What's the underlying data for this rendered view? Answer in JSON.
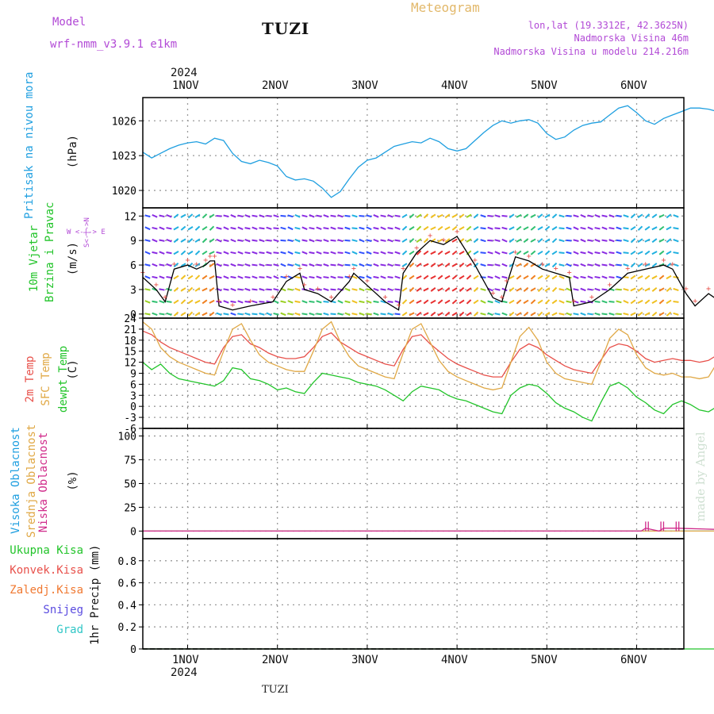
{
  "header": {
    "model_title": "Model",
    "model_name": "wrf-nmm_v3.9.1  e1km",
    "station": "TUZI",
    "meteogram": "Meteogram",
    "coords": "lon,lat (19.3312E, 42.3625N)",
    "elevation": "Nadmorska Visina 46m",
    "model_elevation": "Nadmorska Visina u modelu 214.216m"
  },
  "timeline": {
    "year": "2024",
    "days": [
      "1NOV",
      "2NOV",
      "3NOV",
      "4NOV",
      "5NOV",
      "6NOV"
    ]
  },
  "panels": {
    "pressure": {
      "label": "Pritisak na nivou mora",
      "unit": "(hPa)"
    },
    "wind": {
      "label_1": "10m Vjetar",
      "label_2": "Brzina i Pravac",
      "unit": "(m/s)",
      "compass": "W <-|-> E",
      "compass_ns": "S<-|->N"
    },
    "temp": {
      "label_2m": "2m Temp",
      "label_sfc": "SFC Temp",
      "label_dew": "dewpt Temp",
      "unit": "(C)"
    },
    "cloud": {
      "label_high": "Visoka Oblacnost",
      "label_mid": "Srednja Oblacnost",
      "label_low": "Niska Oblacnost",
      "unit": "(%)"
    },
    "precip": {
      "unit": "1hr Precip (mm)",
      "legend": [
        "Ukupna Kisa",
        "Konvek.Kisa",
        "Zaledj.Kisa",
        "Snijeg",
        "Grad"
      ]
    }
  },
  "footer": {
    "station": "TUZI",
    "made_by": "made by Angel"
  },
  "colors": {
    "pressure": "#1f9fe0",
    "temp2m": "#e8504a",
    "sfc": "#e0a845",
    "dew": "#22c42a",
    "ukupna": "#22c42a",
    "konvek": "#e8504a",
    "zaledj": "#f07830",
    "snijeg": "#5a4be0",
    "grad": "#30c6c6",
    "header": "#b24ad6",
    "meteogram": "#e2b86a"
  },
  "chart_data": [
    {
      "type": "line",
      "title": "Pritisak na nivou mora",
      "ylabel": "(hPa)",
      "ylim": [
        1018.5,
        1028
      ],
      "yticks": [
        1020,
        1023,
        1026
      ],
      "x_unit": "days since 1 NOV 2024 00:00",
      "series": [
        {
          "x": [
            -0.5,
            -0.4,
            -0.3,
            -0.2,
            -0.1,
            0.0,
            0.1,
            0.2,
            0.3,
            0.4,
            0.5,
            0.6,
            0.7,
            0.8,
            0.9,
            1.0,
            1.1,
            1.2,
            1.3,
            1.4,
            1.5,
            1.6,
            1.7,
            1.8,
            1.9,
            2.0,
            2.1,
            2.2,
            2.3,
            2.4,
            2.5,
            2.6,
            2.7,
            2.8,
            2.9,
            3.0,
            3.1,
            3.2,
            3.3,
            3.4,
            3.5,
            3.6,
            3.7,
            3.8,
            3.9,
            4.0,
            4.1,
            4.2,
            4.3,
            4.4,
            4.5,
            4.6,
            4.7,
            4.8,
            4.9,
            5.0,
            5.1,
            5.2,
            5.3,
            5.4,
            5.5,
            5.6,
            5.7,
            5.8,
            5.9,
            6.0,
            6.1,
            6.2,
            6.3,
            6.4,
            6.5
          ],
          "values": [
            1023.3,
            1022.8,
            1023.2,
            1023.6,
            1023.9,
            1024.1,
            1024.2,
            1024.0,
            1024.5,
            1024.3,
            1023.2,
            1022.5,
            1022.3,
            1022.6,
            1022.4,
            1022.1,
            1021.2,
            1020.9,
            1021.0,
            1020.8,
            1020.2,
            1019.4,
            1019.9,
            1021.0,
            1022.0,
            1022.6,
            1022.8,
            1023.3,
            1023.8,
            1024.0,
            1024.2,
            1024.1,
            1024.5,
            1024.2,
            1023.6,
            1023.4,
            1023.6,
            1024.3,
            1025.0,
            1025.6,
            1026.0,
            1025.8,
            1026.0,
            1026.1,
            1025.8,
            1024.9,
            1024.4,
            1024.6,
            1025.2,
            1025.6,
            1025.8,
            1025.9,
            1026.5,
            1027.1,
            1027.3,
            1026.7,
            1026.0,
            1025.7,
            1026.2,
            1026.5,
            1026.8,
            1027.1,
            1027.1,
            1027.0,
            1026.8,
            1027.0,
            1027.3,
            1027.6,
            1027.8,
            1027.4,
            1026.7
          ]
        }
      ]
    },
    {
      "type": "line",
      "title": "10m Vjetar Brzina i Pravac",
      "ylabel": "(m/s)",
      "ylim": [
        -0.5,
        13
      ],
      "yticks": [
        0,
        3,
        6,
        9,
        12
      ],
      "x_unit": "days since 1 NOV 2024 00:00",
      "series": [
        {
          "name": "wind speed",
          "x": [
            -0.5,
            -0.35,
            -0.25,
            -0.15,
            0.0,
            0.1,
            0.2,
            0.25,
            0.3,
            0.35,
            0.5,
            0.7,
            0.95,
            1.1,
            1.25,
            1.3,
            1.45,
            1.6,
            1.8,
            1.85,
            2.0,
            2.2,
            2.35,
            2.4,
            2.55,
            2.7,
            2.85,
            3.0,
            3.2,
            3.4,
            3.5,
            3.55,
            3.65,
            3.8,
            3.95,
            4.1,
            4.25,
            4.3,
            4.5,
            4.7,
            4.9,
            5.1,
            5.3,
            5.4,
            5.55,
            5.65,
            5.8,
            6.0,
            6.2,
            6.35,
            6.5
          ],
          "values": [
            4.5,
            3.0,
            1.5,
            5.5,
            6.0,
            5.5,
            6.0,
            6.5,
            6.5,
            1.0,
            0.5,
            1.0,
            1.5,
            4.0,
            5.0,
            3.0,
            2.5,
            1.5,
            4.0,
            5.0,
            3.5,
            1.5,
            0.5,
            5.0,
            7.5,
            9.0,
            8.5,
            9.5,
            6.0,
            2.0,
            1.5,
            3.5,
            7.0,
            6.5,
            5.5,
            5.0,
            4.5,
            1.0,
            1.5,
            3.0,
            5.0,
            5.5,
            6.0,
            5.5,
            2.5,
            1.0,
            2.5,
            1.0,
            0.5,
            1.0,
            1.5
          ]
        }
      ]
    },
    {
      "type": "line",
      "title": "2m Temp / SFC Temp / dewpt Temp",
      "ylabel": "(C)",
      "ylim": [
        -6,
        24
      ],
      "yticks": [
        -6,
        -3,
        0,
        3,
        6,
        9,
        12,
        15,
        18,
        21,
        24
      ],
      "x_unit": "days since 1 NOV 2024 00:00",
      "series": [
        {
          "name": "2m Temp",
          "x": [
            -0.5,
            -0.4,
            -0.3,
            -0.2,
            -0.1,
            0.0,
            0.1,
            0.2,
            0.3,
            0.4,
            0.5,
            0.6,
            0.7,
            0.8,
            0.9,
            1.0,
            1.1,
            1.2,
            1.3,
            1.4,
            1.5,
            1.6,
            1.7,
            1.8,
            1.9,
            2.0,
            2.1,
            2.2,
            2.3,
            2.4,
            2.5,
            2.6,
            2.7,
            2.8,
            2.9,
            3.0,
            3.1,
            3.2,
            3.3,
            3.4,
            3.5,
            3.6,
            3.7,
            3.8,
            3.9,
            4.0,
            4.1,
            4.2,
            4.3,
            4.4,
            4.5,
            4.6,
            4.7,
            4.8,
            4.9,
            5.0,
            5.1,
            5.2,
            5.3,
            5.4,
            5.5,
            5.6,
            5.7,
            5.8,
            5.9,
            6.0,
            6.1,
            6.2,
            6.3,
            6.4,
            6.5
          ],
          "values": [
            20.5,
            19.5,
            17.5,
            16.0,
            15.0,
            14.0,
            13.0,
            12.0,
            11.5,
            16.0,
            19.0,
            19.5,
            17.0,
            16.0,
            14.5,
            13.5,
            13.0,
            13.0,
            13.5,
            16.0,
            19.0,
            20.0,
            17.5,
            16.0,
            14.5,
            13.5,
            12.5,
            11.5,
            11.0,
            15.5,
            19.0,
            19.5,
            17.0,
            15.0,
            13.0,
            11.5,
            10.5,
            9.5,
            8.5,
            8.0,
            8.0,
            12.0,
            15.5,
            17.0,
            16.0,
            14.0,
            12.5,
            11.0,
            10.0,
            9.5,
            9.0,
            12.5,
            16.0,
            17.0,
            16.5,
            15.0,
            13.0,
            12.0,
            12.5,
            13.0,
            12.5,
            12.5,
            12.0,
            12.5,
            14.0,
            16.0,
            17.5,
            17.0,
            16.0,
            15.5,
            14.5
          ]
        },
        {
          "name": "SFC Temp",
          "x": [
            -0.5,
            -0.4,
            -0.3,
            -0.2,
            -0.1,
            0.0,
            0.1,
            0.2,
            0.3,
            0.4,
            0.5,
            0.6,
            0.7,
            0.8,
            0.9,
            1.0,
            1.1,
            1.2,
            1.3,
            1.4,
            1.5,
            1.6,
            1.7,
            1.8,
            1.9,
            2.0,
            2.1,
            2.2,
            2.3,
            2.4,
            2.5,
            2.6,
            2.7,
            2.8,
            2.9,
            3.0,
            3.1,
            3.2,
            3.3,
            3.4,
            3.5,
            3.6,
            3.7,
            3.8,
            3.9,
            4.0,
            4.1,
            4.2,
            4.3,
            4.4,
            4.5,
            4.6,
            4.7,
            4.8,
            4.9,
            5.0,
            5.1,
            5.2,
            5.3,
            5.4,
            5.5,
            5.6,
            5.7,
            5.8,
            5.9,
            6.0,
            6.1,
            6.2,
            6.3,
            6.4,
            6.5
          ],
          "values": [
            23.0,
            21.0,
            16.0,
            13.5,
            12.0,
            11.0,
            10.0,
            9.0,
            8.5,
            15.0,
            21.0,
            22.5,
            18.0,
            14.0,
            12.0,
            11.0,
            10.0,
            9.5,
            9.5,
            15.0,
            21.0,
            23.0,
            17.5,
            13.5,
            11.0,
            10.0,
            9.0,
            8.0,
            7.5,
            14.5,
            21.0,
            22.5,
            17.5,
            12.5,
            9.5,
            8.0,
            7.0,
            6.0,
            5.0,
            4.5,
            5.0,
            12.0,
            19.0,
            21.5,
            18.0,
            12.0,
            9.0,
            7.5,
            7.0,
            6.5,
            6.0,
            12.0,
            18.5,
            21.0,
            19.5,
            14.0,
            10.5,
            9.0,
            8.5,
            9.0,
            8.0,
            8.0,
            7.5,
            8.0,
            12.0,
            17.0,
            21.0,
            21.5,
            18.0,
            13.0,
            10.0
          ]
        },
        {
          "name": "dewpt Temp",
          "x": [
            -0.5,
            -0.4,
            -0.3,
            -0.2,
            -0.1,
            0.0,
            0.1,
            0.2,
            0.3,
            0.4,
            0.5,
            0.6,
            0.7,
            0.8,
            0.9,
            1.0,
            1.1,
            1.2,
            1.3,
            1.4,
            1.5,
            1.6,
            1.7,
            1.8,
            1.9,
            2.0,
            2.1,
            2.2,
            2.3,
            2.4,
            2.5,
            2.6,
            2.7,
            2.8,
            2.9,
            3.0,
            3.1,
            3.2,
            3.3,
            3.4,
            3.5,
            3.6,
            3.7,
            3.8,
            3.9,
            4.0,
            4.1,
            4.2,
            4.3,
            4.4,
            4.5,
            4.6,
            4.7,
            4.8,
            4.9,
            5.0,
            5.1,
            5.2,
            5.3,
            5.4,
            5.5,
            5.6,
            5.7,
            5.8,
            5.9,
            6.0,
            6.1,
            6.2,
            6.3,
            6.4,
            6.5
          ],
          "values": [
            12.0,
            10.0,
            11.5,
            9.0,
            7.5,
            7.0,
            6.5,
            6.0,
            5.5,
            7.0,
            10.5,
            10.0,
            7.5,
            7.0,
            6.0,
            4.5,
            5.0,
            4.0,
            3.5,
            6.5,
            9.0,
            8.5,
            8.0,
            7.5,
            6.5,
            6.0,
            5.5,
            4.5,
            3.0,
            1.5,
            4.0,
            5.5,
            5.0,
            4.5,
            3.0,
            2.0,
            1.5,
            0.5,
            -0.5,
            -1.5,
            -2.0,
            3.0,
            5.0,
            6.0,
            5.5,
            3.5,
            1.0,
            -0.5,
            -1.5,
            -3.0,
            -4.0,
            1.0,
            5.5,
            6.5,
            5.0,
            2.5,
            1.0,
            -1.0,
            -2.0,
            0.5,
            1.5,
            0.5,
            -1.0,
            -1.5,
            0.0,
            2.0,
            4.5,
            5.5,
            5.0,
            4.5,
            5.0
          ]
        }
      ]
    },
    {
      "type": "line",
      "title": "Visoka / Srednja / Niska Oblacnost",
      "ylabel": "(%)",
      "ylim": [
        -8,
        108
      ],
      "yticks": [
        0,
        25,
        50,
        75,
        100
      ],
      "x_unit": "days since 1 NOV 2024 00:00",
      "series": [
        {
          "name": "Visoka Oblacnost",
          "x": [
            -0.5,
            6.5
          ],
          "values": [
            0,
            0
          ]
        },
        {
          "name": "Srednja Oblacnost",
          "x": [
            -0.5,
            6.5
          ],
          "values": [
            0,
            0
          ]
        },
        {
          "name": "Niska Oblacnost",
          "x": [
            -0.5,
            5.05,
            5.1,
            5.25,
            5.3,
            5.45,
            6.5
          ],
          "values": [
            0,
            0,
            3,
            0,
            3,
            3,
            0
          ]
        }
      ]
    },
    {
      "type": "line",
      "title": "1hr Precip",
      "ylabel": "1hr Precip (mm)",
      "ylim": [
        0,
        1.0
      ],
      "yticks": [
        0,
        0.2,
        0.4,
        0.6,
        0.8
      ],
      "x_unit": "days since 1 NOV 2024 00:00",
      "series": [
        {
          "name": "Ukupna Kisa",
          "x": [
            -0.5,
            6.5
          ],
          "values": [
            0,
            0
          ]
        }
      ]
    }
  ]
}
